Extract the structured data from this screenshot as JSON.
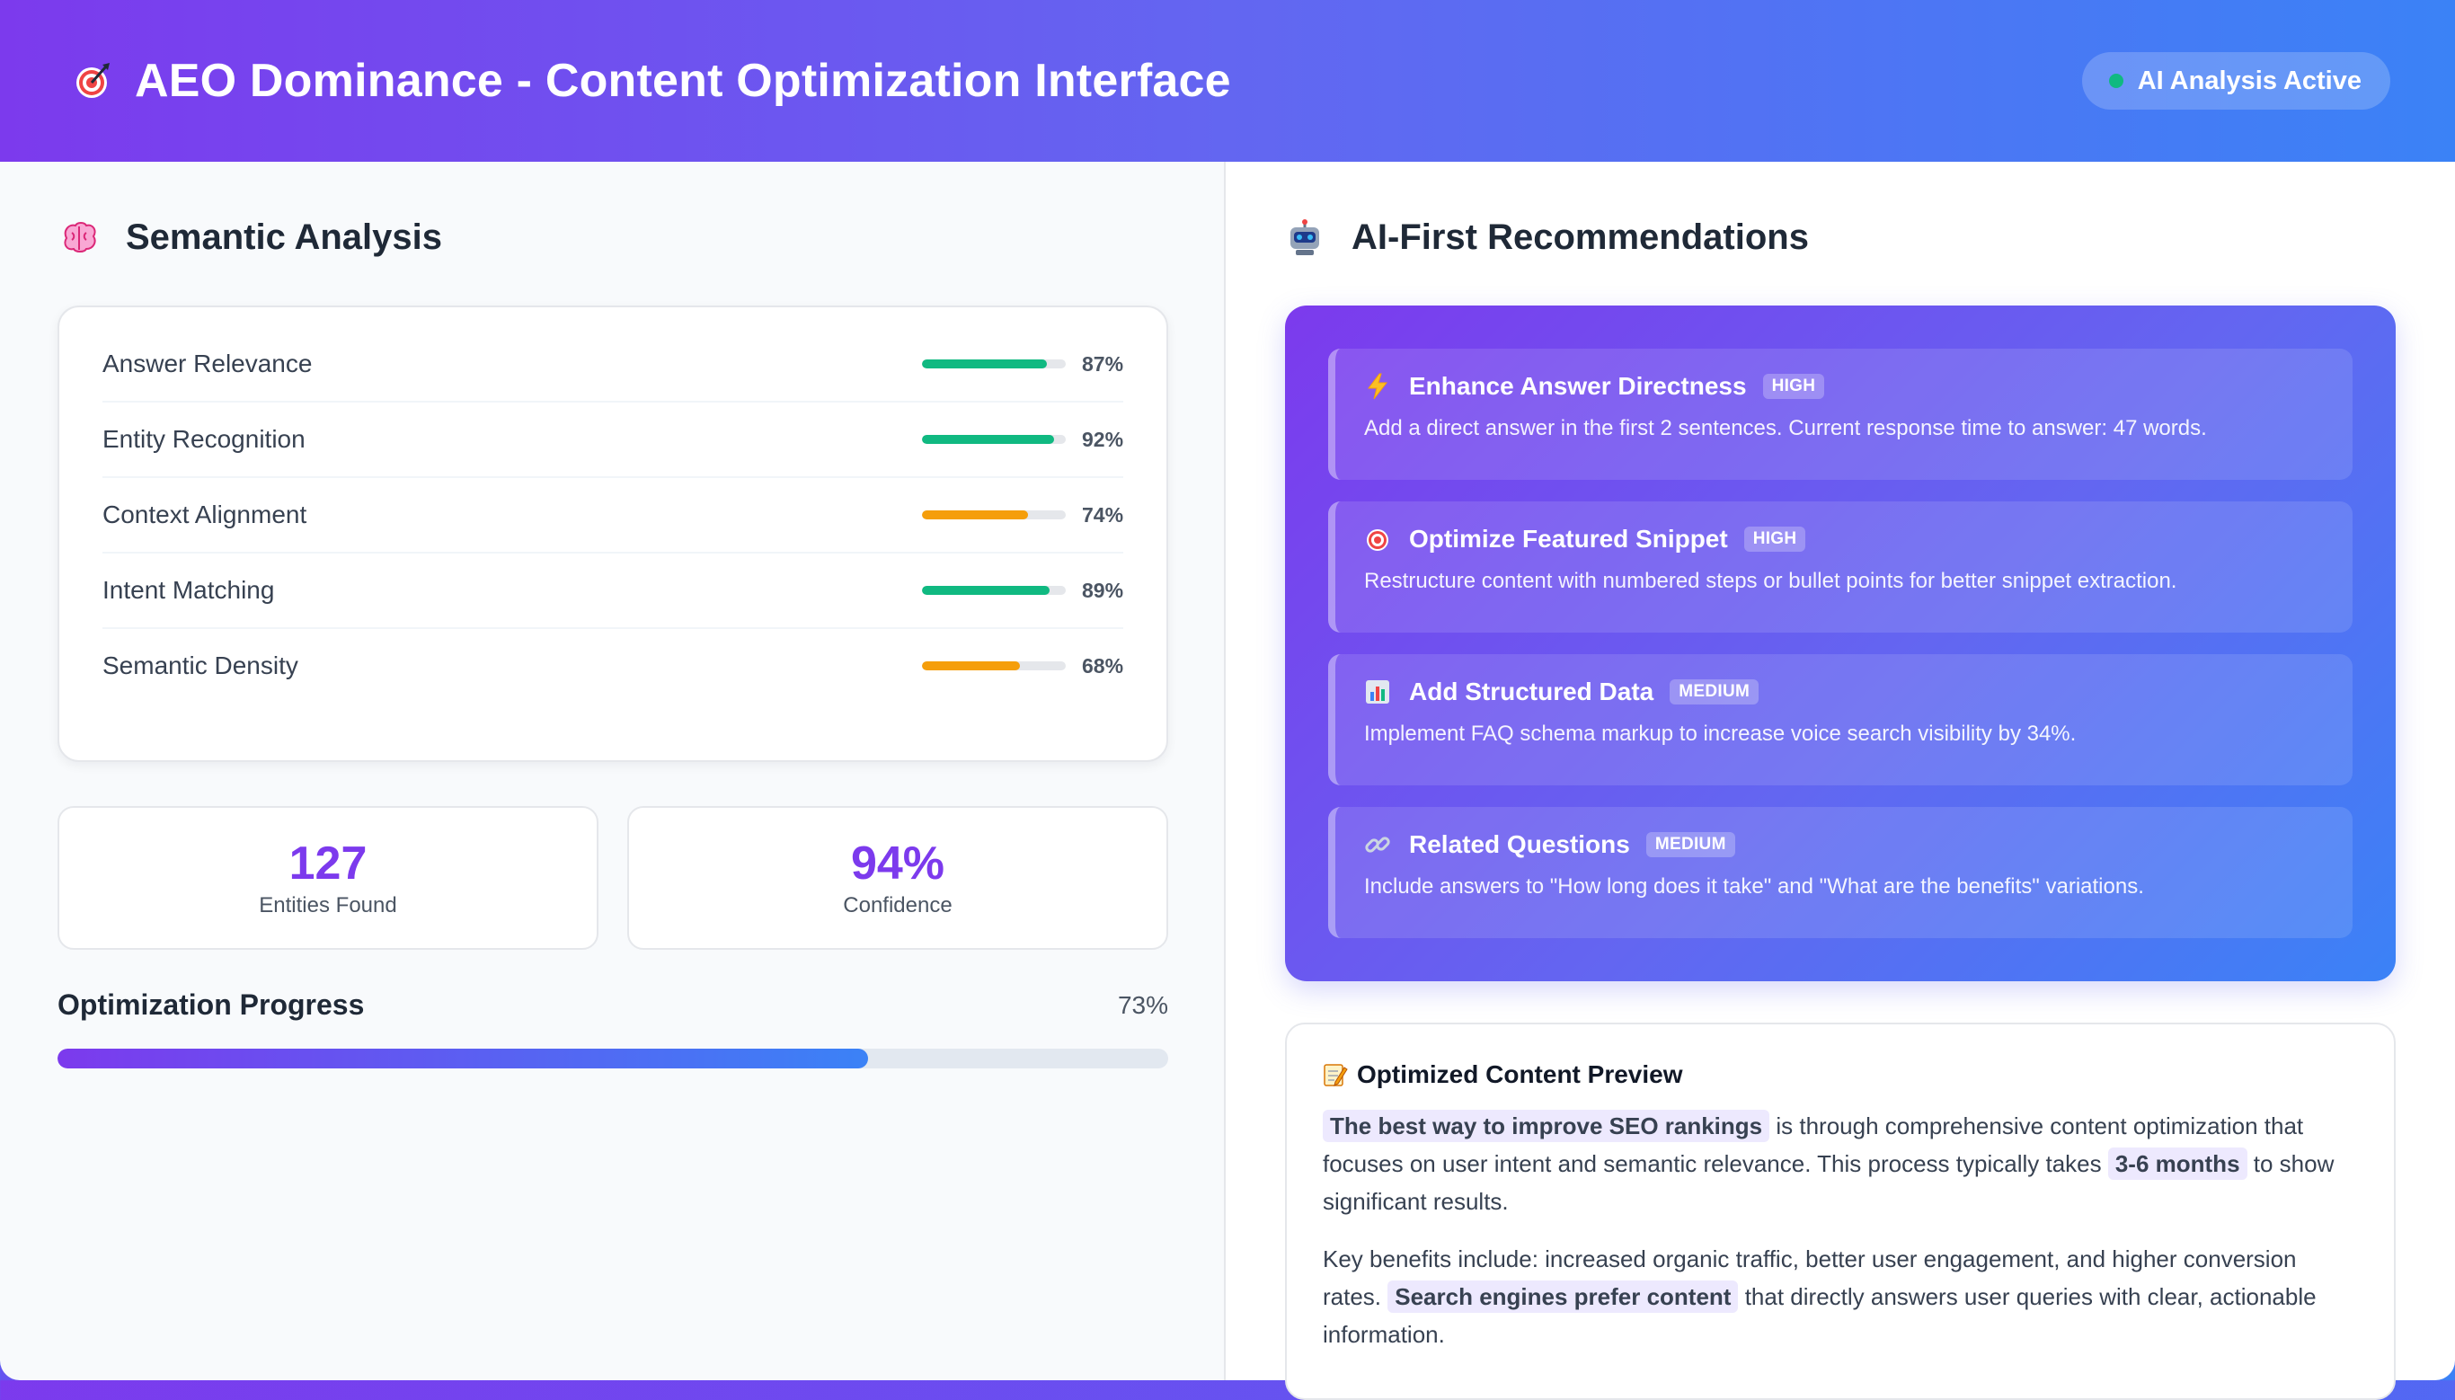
{
  "header": {
    "title": "AEO Dominance - Content Optimization Interface",
    "title_icon": "target-icon",
    "status": "AI Analysis Active",
    "status_color": "#10b981"
  },
  "semantic_analysis": {
    "title": "Semantic Analysis",
    "icon": "brain-icon",
    "metrics": [
      {
        "label": "Answer Relevance",
        "value": "87%",
        "level": 0.87,
        "color": "#10b981"
      },
      {
        "label": "Entity Recognition",
        "value": "92%",
        "level": 0.92,
        "color": "#10b981"
      },
      {
        "label": "Context Alignment",
        "value": "74%",
        "level": 0.74,
        "color": "#f59e0b"
      },
      {
        "label": "Intent Matching",
        "value": "89%",
        "level": 0.89,
        "color": "#10b981"
      },
      {
        "label": "Semantic Density",
        "value": "68%",
        "level": 0.68,
        "color": "#f59e0b"
      }
    ],
    "stats": [
      {
        "value": "127",
        "label": "Entities Found"
      },
      {
        "value": "94%",
        "label": "Confidence"
      }
    ],
    "progress": {
      "title": "Optimization Progress",
      "value": "73%",
      "level": 0.73
    }
  },
  "recommendations": {
    "title": "AI-First Recommendations",
    "icon": "robot-icon",
    "items": [
      {
        "icon": "lightning-icon",
        "title": "Enhance Answer Directness",
        "badge": "HIGH",
        "desc": "Add a direct answer in the first 2 sentences. Current response time to answer: 47 words."
      },
      {
        "icon": "target-icon",
        "title": "Optimize Featured Snippet",
        "badge": "HIGH",
        "desc": "Restructure content with numbered steps or bullet points for better snippet extraction."
      },
      {
        "icon": "bar-chart-icon",
        "title": "Add Structured Data",
        "badge": "MEDIUM",
        "desc": "Implement FAQ schema markup to increase voice search visibility by 34%."
      },
      {
        "icon": "link-icon",
        "title": "Related Questions",
        "badge": "MEDIUM",
        "desc": "Include answers to \"How long does it take\" and \"What are the benefits\" variations."
      }
    ]
  },
  "preview": {
    "title": "Optimized Content Preview",
    "icon": "memo-icon",
    "p1": {
      "hl1": "The best way to improve SEO rankings",
      "t1": " is through comprehensive content optimization that focuses on user intent and semantic relevance. This process typically takes ",
      "hl2": "3-6 months",
      "t2": " to show significant results."
    },
    "p2": {
      "t1": "Key benefits include: increased organic traffic, better user engagement, and higher conversion rates. ",
      "hl1": "Search engines prefer content",
      "t2": " that directly answers user queries with clear, actionable information."
    }
  }
}
